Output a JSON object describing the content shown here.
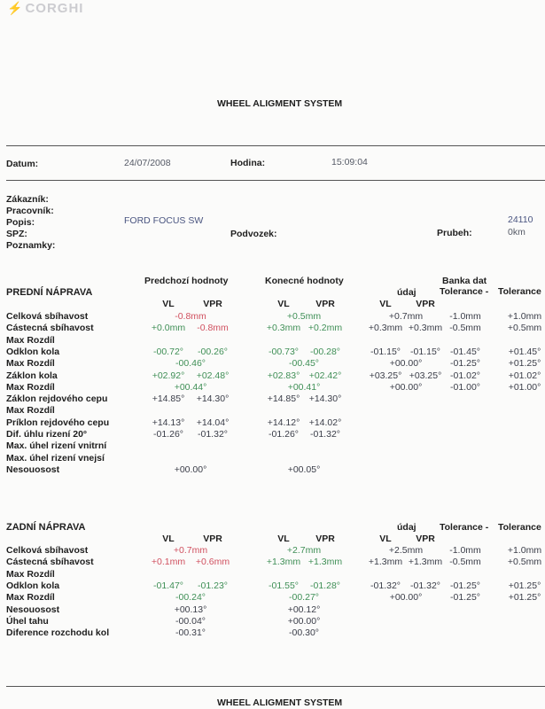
{
  "logo": "CORGHI",
  "title": "WHEEL ALIGMENT SYSTEM",
  "footer_title": "WHEEL ALIGMENT SYSTEM",
  "colors": {
    "red": "#d0505f",
    "green": "#3f8f56",
    "dark": "#3a3d48",
    "blue": "#4a5580"
  },
  "header": {
    "datum_label": "Datum:",
    "datum": "24/07/2008",
    "hodina_label": "Hodina:",
    "hodina": "15:09:04",
    "zakaznik_label": "Zákazník:",
    "pracovnik_label": "Pracovník:",
    "popis_label": "Popis:",
    "popis": "FORD FOCUS SW",
    "spz_label": "SPZ:",
    "poznamky_label": "Poznamky:",
    "podvozek_label": "Podvozek:",
    "prubeh_label": "Prubeh:",
    "prubeh_top": "24110",
    "prubeh": "0km"
  },
  "columns": {
    "prev": "Predchozí hodnoty",
    "final": "Konecné hodnoty",
    "bank": "Banka dat",
    "udaj": "údaj",
    "tol_minus": "Tolerance -",
    "tol_plus": "Tolerance",
    "vl": "VL",
    "vpr": "VPR"
  },
  "front": {
    "title": "PREDNÍ NÁPRAVA",
    "rows": [
      {
        "label": "Celková sbíhavost",
        "prev": "-0.8mm",
        "prev_c": "red",
        "fin": "+0.5mm",
        "fin_c": "green",
        "bank": "+0.7mm",
        "tm": "-1.0mm",
        "tp": "+1.0mm"
      },
      {
        "label": "Cástecná sbíhavost",
        "prev_vl": "+0.0mm",
        "prev_vl_c": "green",
        "prev_vpr": "-0.8mm",
        "prev_vpr_c": "red",
        "fin_vl": "+0.3mm",
        "fin_vpr": "+0.2mm",
        "fin_c": "green",
        "bank_vl": "+0.3mm",
        "bank_vpr": "+0.3mm",
        "tm": "-0.5mm",
        "tp": "+0.5mm"
      },
      {
        "label": "Max Rozdíl"
      },
      {
        "label": "Odklon kola",
        "prev_vl": "-00.72°",
        "prev_vpr": "-00.26°",
        "prev_c": "green",
        "fin_vl": "-00.73°",
        "fin_vpr": "-00.28°",
        "fin_c": "green",
        "bank_vl": "-01.15°",
        "bank_vpr": "-01.15°",
        "tm": "-01.45°",
        "tp": "+01.45°"
      },
      {
        "label": "Max Rozdíl",
        "prev": "-00.46°",
        "prev_c": "green",
        "fin": "-00.45°",
        "fin_c": "green",
        "bank": "+00.00°",
        "tm": "-01.25°",
        "tp": "+01.25°"
      },
      {
        "label": "Záklon kola",
        "prev_vl": "+02.92°",
        "prev_vpr": "+02.48°",
        "prev_c": "green",
        "fin_vl": "+02.83°",
        "fin_vpr": "+02.42°",
        "fin_c": "green",
        "bank_vl": "+03.25°",
        "bank_vpr": "+03.25°",
        "tm": "-01.02°",
        "tp": "+01.02°"
      },
      {
        "label": "Max Rozdíl",
        "prev": "+00.44°",
        "prev_c": "green",
        "fin": "+00.41°",
        "fin_c": "green",
        "bank": "+00.00°",
        "tm": "-01.00°",
        "tp": "+01.00°"
      },
      {
        "label": "Záklon rejdového cepu",
        "prev_vl": "+14.85°",
        "prev_vpr": "+14.30°",
        "fin_vl": "+14.85°",
        "fin_vpr": "+14.30°"
      },
      {
        "label": "Max Rozdíl"
      },
      {
        "label": "Príklon rejdového cepu",
        "prev_vl": "+14.13°",
        "prev_vpr": "+14.04°",
        "fin_vl": "+14.12°",
        "fin_vpr": "+14.02°"
      },
      {
        "label": "Dif. úhlu rizení 20°",
        "prev_vl": "-01.26°",
        "prev_vpr": "-01.32°",
        "fin_vl": "-01.26°",
        "fin_vpr": "-01.32°"
      },
      {
        "label": "Max. úhel rizení vnitrní"
      },
      {
        "label": "Max. úhel rizení vnejsí"
      },
      {
        "label": "Nesouosost",
        "prev": "+00.00°",
        "fin": "+00.05°"
      }
    ]
  },
  "rear": {
    "title": "ZADNÍ NÁPRAVA",
    "rows": [
      {
        "label": "Celková sbíhavost",
        "prev": "+0.7mm",
        "prev_c": "red",
        "fin": "+2.7mm",
        "fin_c": "green",
        "bank": "+2.5mm",
        "tm": "-1.0mm",
        "tp": "+1.0mm"
      },
      {
        "label": "Cástecná sbíhavost",
        "prev_vl": "+0.1mm",
        "prev_vpr": "+0.6mm",
        "prev_c": "red",
        "fin_vl": "+1.3mm",
        "fin_vpr": "+1.3mm",
        "fin_c": "green",
        "bank_vl": "+1.3mm",
        "bank_vpr": "+1.3mm",
        "tm": "-0.5mm",
        "tp": "+0.5mm"
      },
      {
        "label": "Max Rozdíl"
      },
      {
        "label": "Odklon kola",
        "prev_vl": "-01.47°",
        "prev_vpr": "-01.23°",
        "prev_c": "green",
        "fin_vl": "-01.55°",
        "fin_vpr": "-01.28°",
        "fin_c": "green",
        "bank_vl": "-01.32°",
        "bank_vpr": "-01.32°",
        "tm": "-01.25°",
        "tp": "+01.25°"
      },
      {
        "label": "Max Rozdíl",
        "prev": "-00.24°",
        "prev_c": "green",
        "fin": "-00.27°",
        "fin_c": "green",
        "bank": "+00.00°",
        "tm": "-01.25°",
        "tp": "+01.25°"
      },
      {
        "label": "Nesouosost",
        "prev": "+00.13°",
        "fin": "+00.12°"
      },
      {
        "label": "Úhel tahu",
        "prev": "-00.04°",
        "fin": "+00.00°"
      },
      {
        "label": "Diference rozchodu kol",
        "prev": "-00.31°",
        "fin": "-00.30°"
      }
    ]
  }
}
